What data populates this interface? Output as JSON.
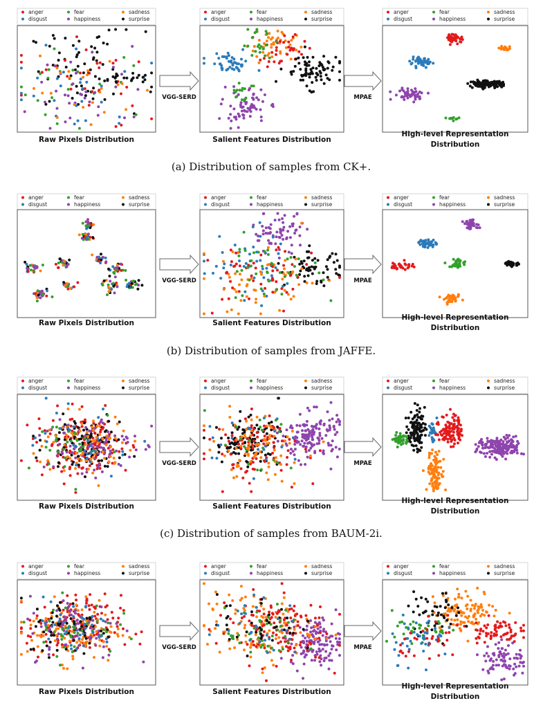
{
  "figure": {
    "type": "scatter-grid",
    "classes": [
      {
        "name": "anger",
        "color": "#e31a1c"
      },
      {
        "name": "disgust",
        "color": "#2b7bba"
      },
      {
        "name": "fear",
        "color": "#33a02c"
      },
      {
        "name": "happiness",
        "color": "#8e44ad"
      },
      {
        "name": "sadness",
        "color": "#ff7f0e"
      },
      {
        "name": "surprise",
        "color": "#111111"
      }
    ]
  },
  "chart_data": [
    {
      "type": "scatter",
      "caption": "(a) Distribution of samples from CK+.",
      "arrows": [
        "VGG-SERD",
        "MPAE"
      ],
      "panels": [
        {
          "title": "Raw Pixels Distribution",
          "xlim": [
            0,
            100
          ],
          "ylim": [
            0,
            100
          ],
          "clusters": [
            {
              "cls": "surprise",
              "cx": 50,
              "cy": 58,
              "sx": 22,
              "sy": 20,
              "n": 70
            },
            {
              "cls": "anger",
              "cx": 48,
              "cy": 45,
              "sx": 26,
              "sy": 22,
              "n": 30
            },
            {
              "cls": "disgust",
              "cx": 45,
              "cy": 40,
              "sx": 26,
              "sy": 22,
              "n": 28
            },
            {
              "cls": "fear",
              "cx": 50,
              "cy": 45,
              "sx": 26,
              "sy": 22,
              "n": 22
            },
            {
              "cls": "happiness",
              "cx": 48,
              "cy": 38,
              "sx": 26,
              "sy": 22,
              "n": 34
            },
            {
              "cls": "sadness",
              "cx": 52,
              "cy": 48,
              "sx": 26,
              "sy": 22,
              "n": 24
            },
            {
              "cls": "surprise",
              "cx": 80,
              "cy": 50,
              "sx": 7,
              "sy": 3,
              "n": 18
            }
          ]
        },
        {
          "title": "Salient Features Distribution",
          "xlim": [
            0,
            100
          ],
          "ylim": [
            0,
            100
          ],
          "clusters": [
            {
              "cls": "sadness",
              "cx": 50,
              "cy": 85,
              "sx": 9,
              "sy": 8,
              "n": 45
            },
            {
              "cls": "anger",
              "cx": 58,
              "cy": 78,
              "sx": 8,
              "sy": 8,
              "n": 35
            },
            {
              "cls": "fear",
              "cx": 40,
              "cy": 85,
              "sx": 6,
              "sy": 8,
              "n": 22
            },
            {
              "cls": "disgust",
              "cx": 20,
              "cy": 65,
              "sx": 8,
              "sy": 6,
              "n": 45
            },
            {
              "cls": "surprise",
              "cx": 78,
              "cy": 58,
              "sx": 10,
              "sy": 8,
              "n": 80
            },
            {
              "cls": "happiness",
              "cx": 30,
              "cy": 22,
              "sx": 8,
              "sy": 9,
              "n": 70
            },
            {
              "cls": "fear",
              "cx": 30,
              "cy": 40,
              "sx": 5,
              "sy": 8,
              "n": 14
            }
          ]
        },
        {
          "title": "High-level Representation Distribution",
          "xlim": [
            0,
            100
          ],
          "ylim": [
            0,
            100
          ],
          "clusters": [
            {
              "cls": "anger",
              "cx": 50,
              "cy": 90,
              "sx": 3,
              "sy": 2,
              "n": 40
            },
            {
              "cls": "sadness",
              "cx": 86,
              "cy": 80,
              "sx": 2,
              "sy": 1.5,
              "n": 20
            },
            {
              "cls": "disgust",
              "cx": 26,
              "cy": 66,
              "sx": 4,
              "sy": 2,
              "n": 50
            },
            {
              "cls": "surprise",
              "cx": 72,
              "cy": 45,
              "sx": 6,
              "sy": 1.5,
              "n": 130
            },
            {
              "cls": "happiness",
              "cx": 18,
              "cy": 35,
              "sx": 6,
              "sy": 3,
              "n": 50
            },
            {
              "cls": "fear",
              "cx": 49,
              "cy": 10,
              "sx": 3,
              "sy": 1.5,
              "n": 12
            }
          ]
        }
      ]
    },
    {
      "type": "scatter",
      "caption": "(b) Distribution of samples from JAFFE.",
      "arrows": [
        "VGG-SERD",
        "MPAE"
      ],
      "panels": [
        {
          "title": "Raw Pixels Distribution",
          "xlim": [
            0,
            100
          ],
          "ylim": [
            0,
            100
          ],
          "clusters": [
            {
              "cls": "mixed",
              "cx": 52,
              "cy": 88,
              "sx": 2,
              "sy": 2,
              "n": 22
            },
            {
              "cls": "mixed",
              "cx": 50,
              "cy": 76,
              "sx": 2,
              "sy": 2,
              "n": 20
            },
            {
              "cls": "mixed",
              "cx": 10,
              "cy": 45,
              "sx": 3,
              "sy": 3,
              "n": 26
            },
            {
              "cls": "mixed",
              "cx": 32,
              "cy": 50,
              "sx": 3,
              "sy": 3,
              "n": 26
            },
            {
              "cls": "mixed",
              "cx": 16,
              "cy": 20,
              "sx": 3,
              "sy": 3,
              "n": 30
            },
            {
              "cls": "mixed",
              "cx": 36,
              "cy": 28,
              "sx": 3,
              "sy": 2,
              "n": 20
            },
            {
              "cls": "mixed",
              "cx": 60,
              "cy": 55,
              "sx": 3,
              "sy": 3,
              "n": 20
            },
            {
              "cls": "mixed",
              "cx": 72,
              "cy": 45,
              "sx": 3,
              "sy": 3,
              "n": 26
            },
            {
              "cls": "mixed",
              "cx": 68,
              "cy": 28,
              "sx": 3,
              "sy": 3,
              "n": 26
            },
            {
              "cls": "mixed",
              "cx": 85,
              "cy": 30,
              "sx": 3,
              "sy": 3,
              "n": 24
            }
          ]
        },
        {
          "title": "Salient Features Distribution",
          "xlim": [
            0,
            100
          ],
          "ylim": [
            0,
            100
          ],
          "clusters": [
            {
              "cls": "happiness",
              "cx": 55,
              "cy": 80,
              "sx": 10,
              "sy": 10,
              "n": 70
            },
            {
              "cls": "surprise",
              "cx": 80,
              "cy": 45,
              "sx": 10,
              "sy": 8,
              "n": 60
            },
            {
              "cls": "disgust",
              "cx": 35,
              "cy": 45,
              "sx": 20,
              "sy": 18,
              "n": 50
            },
            {
              "cls": "sadness",
              "cx": 45,
              "cy": 30,
              "sx": 22,
              "sy": 18,
              "n": 60
            },
            {
              "cls": "anger",
              "cx": 40,
              "cy": 35,
              "sx": 20,
              "sy": 18,
              "n": 50
            },
            {
              "cls": "fear",
              "cx": 45,
              "cy": 45,
              "sx": 20,
              "sy": 15,
              "n": 40
            }
          ]
        },
        {
          "title": "High-level Representation Distribution",
          "xlim": [
            0,
            100
          ],
          "ylim": [
            0,
            100
          ],
          "clusters": [
            {
              "cls": "happiness",
              "cx": 62,
              "cy": 88,
              "sx": 3,
              "sy": 2,
              "n": 40
            },
            {
              "cls": "disgust",
              "cx": 30,
              "cy": 70,
              "sx": 3,
              "sy": 2,
              "n": 40
            },
            {
              "cls": "fear",
              "cx": 52,
              "cy": 50,
              "sx": 3,
              "sy": 2.5,
              "n": 35
            },
            {
              "cls": "anger",
              "cx": 12,
              "cy": 48,
              "sx": 4,
              "sy": 2,
              "n": 35
            },
            {
              "cls": "surprise",
              "cx": 90,
              "cy": 50,
              "sx": 3,
              "sy": 1.5,
              "n": 30
            },
            {
              "cls": "sadness",
              "cx": 48,
              "cy": 15,
              "sx": 3,
              "sy": 2,
              "n": 35
            }
          ]
        }
      ]
    },
    {
      "type": "scatter",
      "caption": "(c) Distribution of samples from BAUM-2i.",
      "arrows": [
        "VGG-SERD",
        "MPAE"
      ],
      "panels": [
        {
          "title": "Raw Pixels Distribution",
          "xlim": [
            0,
            100
          ],
          "ylim": [
            0,
            100
          ],
          "clusters": [
            {
              "cls": "anger",
              "cx": 48,
              "cy": 52,
              "sx": 18,
              "sy": 16,
              "n": 140
            },
            {
              "cls": "surprise",
              "cx": 48,
              "cy": 55,
              "sx": 14,
              "sy": 12,
              "n": 110
            },
            {
              "cls": "happiness",
              "cx": 50,
              "cy": 52,
              "sx": 18,
              "sy": 16,
              "n": 90
            },
            {
              "cls": "sadness",
              "cx": 48,
              "cy": 52,
              "sx": 18,
              "sy": 16,
              "n": 80
            },
            {
              "cls": "fear",
              "cx": 48,
              "cy": 52,
              "sx": 18,
              "sy": 16,
              "n": 30
            },
            {
              "cls": "disgust",
              "cx": 48,
              "cy": 52,
              "sx": 18,
              "sy": 16,
              "n": 30
            }
          ]
        },
        {
          "title": "Salient Features Distribution",
          "xlim": [
            0,
            100
          ],
          "ylim": [
            0,
            100
          ],
          "clusters": [
            {
              "cls": "happiness",
              "cx": 78,
              "cy": 62,
              "sx": 10,
              "sy": 12,
              "n": 150
            },
            {
              "cls": "surprise",
              "cx": 32,
              "cy": 55,
              "sx": 12,
              "sy": 12,
              "n": 110
            },
            {
              "cls": "anger",
              "cx": 38,
              "cy": 50,
              "sx": 18,
              "sy": 16,
              "n": 90
            },
            {
              "cls": "sadness",
              "cx": 38,
              "cy": 50,
              "sx": 18,
              "sy": 16,
              "n": 80
            },
            {
              "cls": "fear",
              "cx": 35,
              "cy": 50,
              "sx": 16,
              "sy": 16,
              "n": 20
            },
            {
              "cls": "disgust",
              "cx": 35,
              "cy": 50,
              "sx": 16,
              "sy": 16,
              "n": 20
            }
          ]
        },
        {
          "title": "High-level Representation Distribution",
          "xlim": [
            0,
            100
          ],
          "ylim": [
            0,
            100
          ],
          "clusters": [
            {
              "cls": "surprise",
              "cx": 22,
              "cy": 68,
              "sx": 3,
              "sy": 10,
              "n": 110
            },
            {
              "cls": "fear",
              "cx": 11,
              "cy": 58,
              "sx": 2.5,
              "sy": 3,
              "n": 50
            },
            {
              "cls": "disgust",
              "cx": 34,
              "cy": 65,
              "sx": 1.5,
              "sy": 6,
              "n": 25
            },
            {
              "cls": "anger",
              "cx": 47,
              "cy": 68,
              "sx": 4,
              "sy": 8,
              "n": 110
            },
            {
              "cls": "sadness",
              "cx": 36,
              "cy": 25,
              "sx": 3,
              "sy": 10,
              "n": 100
            },
            {
              "cls": "happiness",
              "cx": 82,
              "cy": 50,
              "sx": 8,
              "sy": 5,
              "n": 170
            }
          ]
        }
      ]
    },
    {
      "type": "scatter",
      "caption": "",
      "arrows": [
        "VGG-SERD",
        "MPAE"
      ],
      "panels": [
        {
          "title": "Raw Pixels Distribution",
          "xlim": [
            0,
            100
          ],
          "ylim": [
            0,
            100
          ],
          "clusters": [
            {
              "cls": "anger",
              "cx": 40,
              "cy": 55,
              "sx": 18,
              "sy": 16,
              "n": 140
            },
            {
              "cls": "sadness",
              "cx": 42,
              "cy": 52,
              "sx": 18,
              "sy": 16,
              "n": 110
            },
            {
              "cls": "happiness",
              "cx": 42,
              "cy": 55,
              "sx": 18,
              "sy": 16,
              "n": 80
            },
            {
              "cls": "surprise",
              "cx": 38,
              "cy": 55,
              "sx": 16,
              "sy": 14,
              "n": 60
            },
            {
              "cls": "fear",
              "cx": 40,
              "cy": 55,
              "sx": 16,
              "sy": 14,
              "n": 40
            },
            {
              "cls": "disgust",
              "cx": 40,
              "cy": 55,
              "sx": 16,
              "sy": 14,
              "n": 40
            }
          ]
        },
        {
          "title": "Salient Features Distribution",
          "xlim": [
            0,
            100
          ],
          "ylim": [
            0,
            100
          ],
          "clusters": [
            {
              "cls": "happiness",
              "cx": 82,
              "cy": 40,
              "sx": 9,
              "sy": 12,
              "n": 130
            },
            {
              "cls": "sadness",
              "cx": 40,
              "cy": 55,
              "sx": 20,
              "sy": 18,
              "n": 120
            },
            {
              "cls": "anger",
              "cx": 50,
              "cy": 55,
              "sx": 20,
              "sy": 18,
              "n": 120
            },
            {
              "cls": "fear",
              "cx": 45,
              "cy": 45,
              "sx": 14,
              "sy": 14,
              "n": 40
            },
            {
              "cls": "surprise",
              "cx": 40,
              "cy": 60,
              "sx": 15,
              "sy": 15,
              "n": 40
            },
            {
              "cls": "disgust",
              "cx": 40,
              "cy": 55,
              "sx": 16,
              "sy": 15,
              "n": 30
            }
          ]
        },
        {
          "title": "High-level Representation Distribution",
          "xlim": [
            0,
            100
          ],
          "ylim": [
            0,
            100
          ],
          "clusters": [
            {
              "cls": "sadness",
              "cx": 58,
              "cy": 72,
              "sx": 12,
              "sy": 10,
              "n": 110
            },
            {
              "cls": "anger",
              "cx": 78,
              "cy": 52,
              "sx": 9,
              "sy": 6,
              "n": 70
            },
            {
              "cls": "happiness",
              "cx": 85,
              "cy": 22,
              "sx": 8,
              "sy": 10,
              "n": 80
            },
            {
              "cls": "surprise",
              "cx": 35,
              "cy": 70,
              "sx": 10,
              "sy": 10,
              "n": 45
            },
            {
              "cls": "fear",
              "cx": 25,
              "cy": 50,
              "sx": 10,
              "sy": 10,
              "n": 35
            },
            {
              "cls": "disgust",
              "cx": 25,
              "cy": 45,
              "sx": 12,
              "sy": 12,
              "n": 40
            },
            {
              "cls": "anger",
              "cx": 35,
              "cy": 40,
              "sx": 12,
              "sy": 10,
              "n": 30
            }
          ]
        }
      ]
    }
  ]
}
